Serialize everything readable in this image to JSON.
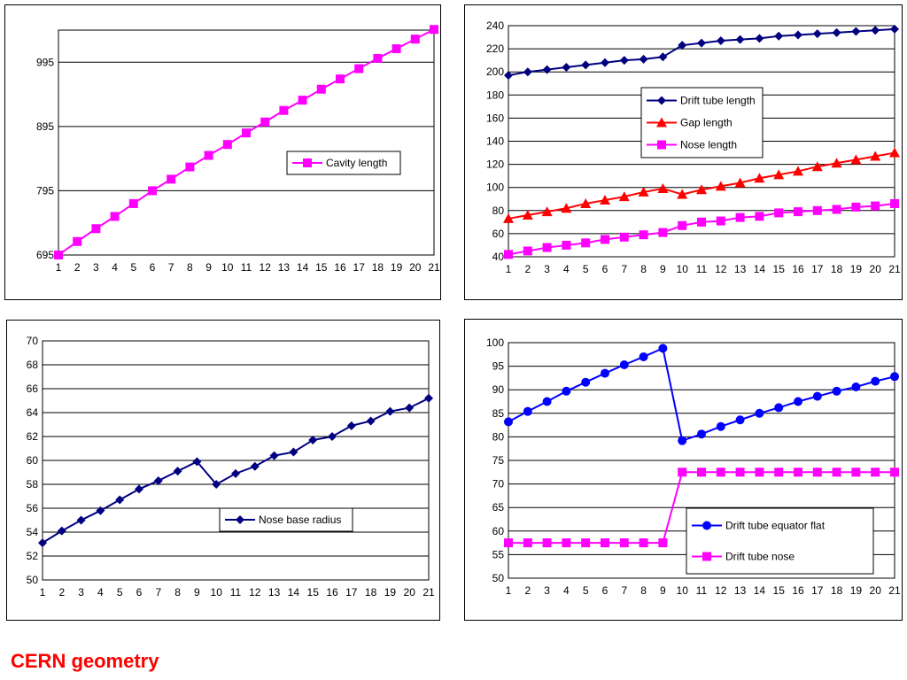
{
  "footer": {
    "title": "CERN geometry"
  },
  "chart_data": [
    {
      "id": "cavity",
      "type": "line",
      "x": [
        1,
        2,
        3,
        4,
        5,
        6,
        7,
        8,
        9,
        10,
        11,
        12,
        13,
        14,
        15,
        16,
        17,
        18,
        19,
        20,
        21
      ],
      "ylim": [
        695,
        1045
      ],
      "yticks": [
        695,
        795,
        895,
        995
      ],
      "grid": true,
      "legend_position": "center-right",
      "series": [
        {
          "name": "Cavity length",
          "color": "#ff00ff",
          "marker": "square",
          "values": [
            695,
            716,
            736,
            755,
            775,
            795,
            813,
            832,
            850,
            867,
            885,
            902,
            920,
            936,
            953,
            969,
            985,
            1001,
            1016,
            1031,
            1046
          ]
        }
      ]
    },
    {
      "id": "lengths",
      "type": "line",
      "x": [
        1,
        2,
        3,
        4,
        5,
        6,
        7,
        8,
        9,
        10,
        11,
        12,
        13,
        14,
        15,
        16,
        17,
        18,
        19,
        20,
        21
      ],
      "ylim": [
        40,
        240
      ],
      "yticks": [
        40,
        60,
        80,
        100,
        120,
        140,
        160,
        180,
        200,
        220,
        240
      ],
      "grid": true,
      "legend_position": "center",
      "series": [
        {
          "name": "Drift tube length",
          "color": "#000080",
          "marker": "diamond",
          "values": [
            197,
            200,
            202,
            204,
            206,
            208,
            210,
            211,
            213,
            223,
            225,
            227,
            228,
            229,
            231,
            232,
            233,
            234,
            235,
            236,
            237
          ]
        },
        {
          "name": "Gap length",
          "color": "#ff0000",
          "marker": "triangle",
          "values": [
            73,
            76,
            79,
            82,
            86,
            89,
            92,
            96,
            99,
            94,
            98,
            101,
            104,
            108,
            111,
            114,
            118,
            121,
            124,
            127,
            130
          ]
        },
        {
          "name": "Nose length",
          "color": "#ff00ff",
          "marker": "square",
          "values": [
            42,
            45,
            48,
            50,
            52,
            55,
            57,
            59,
            61,
            67,
            70,
            71,
            74,
            75,
            78,
            79,
            80,
            81,
            83,
            84,
            86
          ]
        }
      ]
    },
    {
      "id": "noseradius",
      "type": "line",
      "x": [
        1,
        2,
        3,
        4,
        5,
        6,
        7,
        8,
        9,
        10,
        11,
        12,
        13,
        14,
        15,
        16,
        17,
        18,
        19,
        20,
        21
      ],
      "ylim": [
        50,
        70
      ],
      "yticks": [
        50,
        52,
        54,
        56,
        58,
        60,
        62,
        64,
        66,
        68,
        70
      ],
      "grid": true,
      "legend_position": "lower-right",
      "series": [
        {
          "name": "Nose base radius",
          "color": "#000080",
          "marker": "diamond",
          "values": [
            53.1,
            54.1,
            55.0,
            55.8,
            56.7,
            57.6,
            58.3,
            59.1,
            59.9,
            58.0,
            58.9,
            59.5,
            60.4,
            60.7,
            61.7,
            62.0,
            62.9,
            63.3,
            64.1,
            64.4,
            65.2
          ]
        }
      ]
    },
    {
      "id": "drifttube",
      "type": "line",
      "x": [
        1,
        2,
        3,
        4,
        5,
        6,
        7,
        8,
        9,
        10,
        11,
        12,
        13,
        14,
        15,
        16,
        17,
        18,
        19,
        20,
        21
      ],
      "ylim": [
        50,
        100
      ],
      "yticks": [
        50,
        55,
        60,
        65,
        70,
        75,
        80,
        85,
        90,
        95,
        100
      ],
      "grid": true,
      "legend_position": "lower-right",
      "series": [
        {
          "name": "Drift tube equator flat",
          "color": "#0000ff",
          "marker": "circle",
          "values": [
            83.2,
            85.4,
            87.5,
            89.7,
            91.6,
            93.5,
            95.3,
            97.0,
            98.8,
            79.2,
            80.6,
            82.2,
            83.6,
            85.0,
            86.2,
            87.5,
            88.6,
            89.7,
            90.6,
            91.8,
            92.8
          ]
        },
        {
          "name": "Drift tube nose",
          "color": "#ff00ff",
          "marker": "square",
          "values": [
            57.5,
            57.5,
            57.5,
            57.5,
            57.5,
            57.5,
            57.5,
            57.5,
            57.5,
            72.5,
            72.5,
            72.5,
            72.5,
            72.5,
            72.5,
            72.5,
            72.5,
            72.5,
            72.5,
            72.5,
            72.5
          ]
        }
      ]
    }
  ]
}
